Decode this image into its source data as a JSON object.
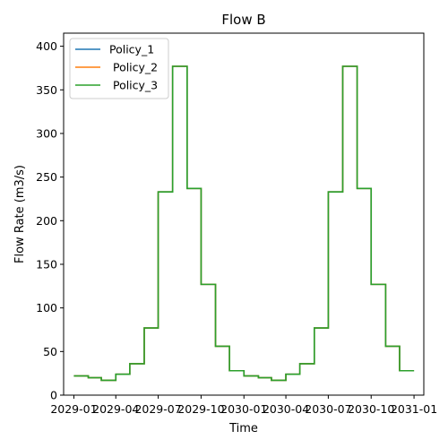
{
  "chart_data": {
    "type": "line",
    "title": "Flow B",
    "xlabel": "Time",
    "ylabel": "Flow Rate (m3/s)",
    "xlim": [
      "2028-12-10",
      "2031-01-22"
    ],
    "ylim": [
      0,
      415
    ],
    "yticks": [
      0,
      50,
      100,
      150,
      200,
      250,
      300,
      350,
      400
    ],
    "xticks": [
      {
        "date": "2029-01-01",
        "label": "2029-01"
      },
      {
        "date": "2029-04-01",
        "label": "2029-04"
      },
      {
        "date": "2029-07-01",
        "label": "2029-07"
      },
      {
        "date": "2029-10-01",
        "label": "2029-10"
      },
      {
        "date": "2030-01-01",
        "label": "2030-01"
      },
      {
        "date": "2030-04-01",
        "label": "2030-04"
      },
      {
        "date": "2030-07-01",
        "label": "2030-07"
      },
      {
        "date": "2030-10-01",
        "label": "2030-10"
      },
      {
        "date": "2031-01-01",
        "label": "2031-01"
      }
    ],
    "grid": false,
    "legend": "top-left",
    "x": [
      "2029-01-01",
      "2029-02-01",
      "2029-03-01",
      "2029-04-01",
      "2029-05-01",
      "2029-06-01",
      "2029-07-01",
      "2029-08-01",
      "2029-09-01",
      "2029-10-01",
      "2029-11-01",
      "2029-12-01",
      "2030-01-01",
      "2030-02-01",
      "2030-03-01",
      "2030-04-01",
      "2030-05-01",
      "2030-06-01",
      "2030-07-01",
      "2030-08-01",
      "2030-09-01",
      "2030-10-01",
      "2030-11-01",
      "2030-12-01",
      "2031-01-01"
    ],
    "series": [
      {
        "name": "Policy_1",
        "color": "#1f77b4",
        "values": [
          22,
          20,
          17,
          24,
          36,
          77,
          233,
          377,
          237,
          127,
          56,
          28,
          22,
          20,
          17,
          24,
          36,
          77,
          233,
          377,
          237,
          127,
          56,
          28,
          28
        ]
      },
      {
        "name": " Policy_2",
        "color": "#ff7f0e",
        "values": [
          22,
          20,
          17,
          24,
          36,
          77,
          233,
          377,
          237,
          127,
          56,
          28,
          22,
          20,
          17,
          24,
          36,
          77,
          233,
          377,
          237,
          127,
          56,
          28,
          28
        ]
      },
      {
        "name": " Policy_3",
        "color": "#2ca02c",
        "values": [
          22,
          20,
          17,
          24,
          36,
          77,
          233,
          377,
          237,
          127,
          56,
          28,
          22,
          20,
          17,
          24,
          36,
          77,
          233,
          377,
          237,
          127,
          56,
          28,
          28
        ]
      }
    ]
  }
}
